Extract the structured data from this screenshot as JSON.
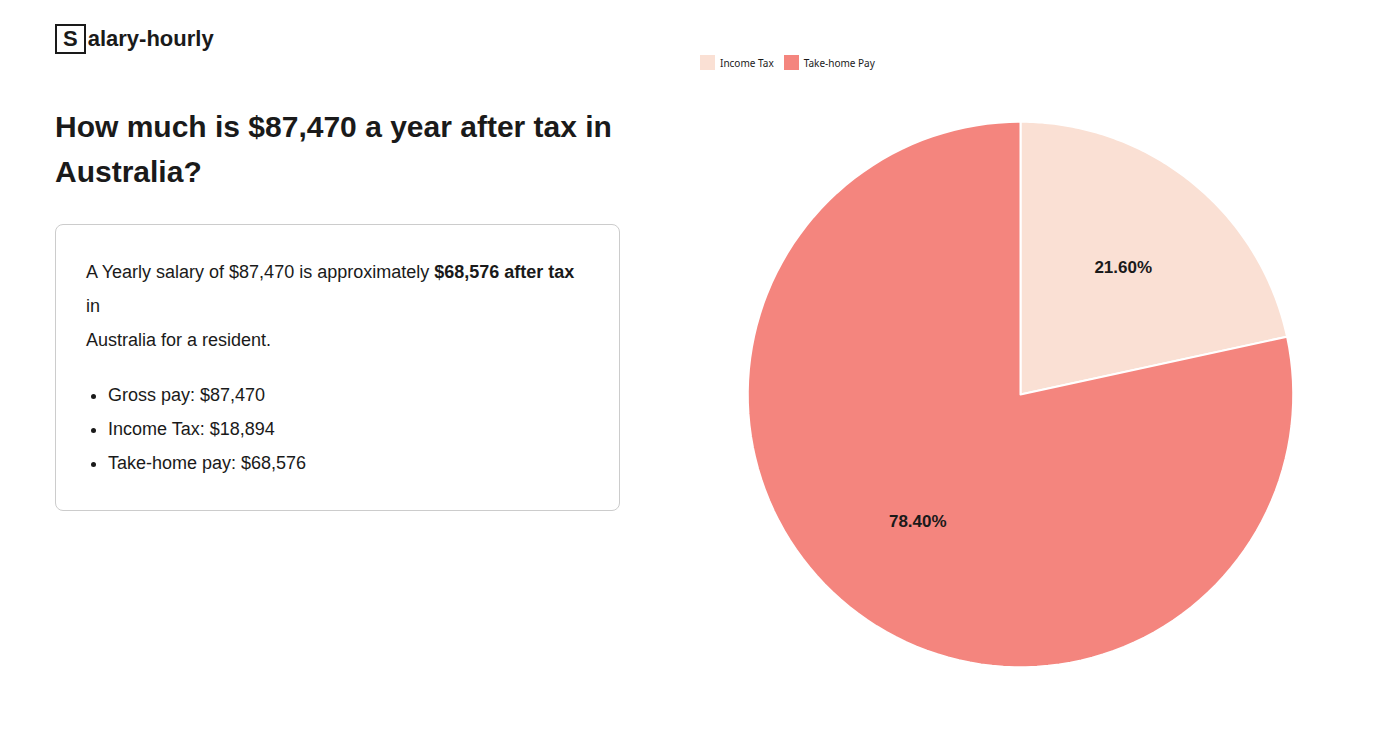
{
  "chart_data": {
    "type": "pie",
    "title": "How much is $87,470 a year after tax in\nAustralia?",
    "categories": [
      "Income Tax",
      "Take-home Pay"
    ],
    "values": [
      21.6,
      78.4
    ],
    "value_labels": [
      "21.60%",
      "78.40%"
    ],
    "colors": [
      "#fae0d4",
      "#f4857e"
    ],
    "data_labels": true,
    "legend": "top",
    "annotations": [
      "S",
      "alary-hourly",
      "A Yearly salary of $87,470 is approximately ",
      "$68,576 after tax",
      " in",
      "Australia for a resident.",
      "Gross pay: $87,470",
      "Income Tax: $18,894",
      "Take-home pay: $68,576"
    ]
  }
}
